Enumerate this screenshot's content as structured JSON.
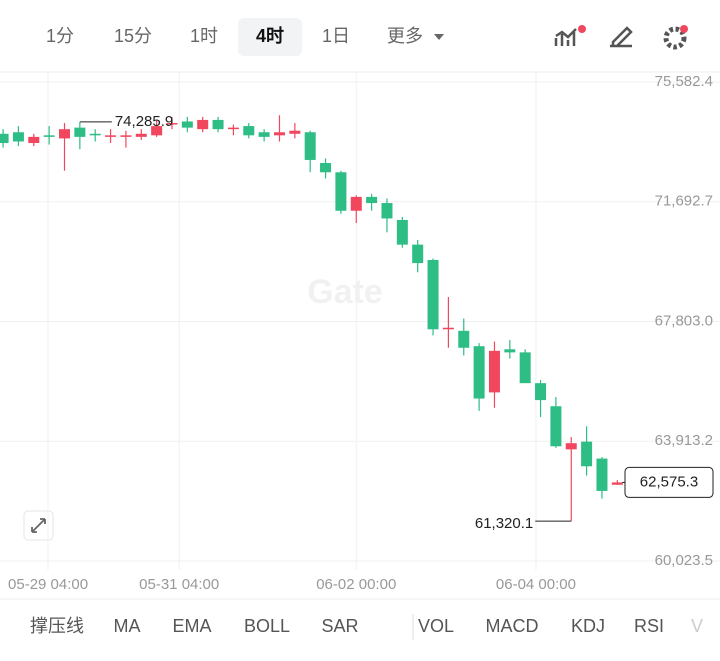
{
  "toolbar": {
    "intervals": [
      "1分",
      "15分",
      "1时",
      "4时",
      "1日"
    ],
    "selected": 3,
    "more": "更多"
  },
  "indicators": [
    "撑压线",
    "MA",
    "EMA",
    "BOLL",
    "SAR",
    "VOL",
    "MACD",
    "KDJ",
    "RSI",
    "V"
  ],
  "chart_data": {
    "type": "candlestick",
    "watermark": "Gate",
    "up_color": "#f0475e",
    "down_color": "#2dbd85",
    "open": [
      73900,
      73950,
      73600,
      73850,
      73750,
      74100,
      73900,
      73800,
      73800,
      73800,
      73850,
      74200,
      74300,
      74050,
      74350,
      74050,
      74150,
      73950,
      73850,
      73900,
      73950,
      72950,
      72650,
      71400,
      71850,
      71650,
      71100,
      70300,
      69800,
      67550,
      67500,
      67000,
      65500,
      66900,
      66800,
      65800,
      65050,
      63650,
      63900,
      63350,
      62500
    ],
    "high": [
      74050,
      74150,
      73900,
      74150,
      74250,
      74285.9,
      74050,
      74050,
      74000,
      74050,
      74350,
      74450,
      74450,
      74450,
      74450,
      74200,
      74250,
      74050,
      74500,
      74250,
      74000,
      73100,
      72700,
      71900,
      71950,
      71800,
      71200,
      70450,
      69850,
      68600,
      67900,
      67100,
      67150,
      67200,
      66900,
      65900,
      65350,
      64050,
      64400,
      63400,
      62650
    ],
    "low": [
      73450,
      73500,
      73500,
      73550,
      72700,
      73400,
      73650,
      73600,
      73450,
      73700,
      73800,
      74050,
      73950,
      73950,
      73950,
      73850,
      73750,
      73650,
      73650,
      73750,
      72650,
      72450,
      71300,
      71000,
      71400,
      70700,
      70200,
      69400,
      67350,
      66950,
      66700,
      64900,
      65000,
      66600,
      65800,
      64700,
      63700,
      61320.1,
      62800,
      62050,
      62500
    ],
    "close": [
      73600,
      73650,
      73800,
      73800,
      74050,
      73800,
      73850,
      73850,
      73850,
      73900,
      74150,
      74250,
      74100,
      74350,
      74050,
      74100,
      73850,
      73800,
      73950,
      74000,
      73050,
      72650,
      71400,
      71850,
      71650,
      71150,
      70300,
      69700,
      67550,
      67600,
      66950,
      65300,
      66850,
      66800,
      65800,
      65250,
      63750,
      63850,
      63100,
      62300,
      62575.3
    ],
    "ylim": [
      59731,
      75907
    ],
    "xlim": [
      -0.2,
      40.5
    ],
    "yticks": [
      {
        "value": 75582.4,
        "label": "75,582.4"
      },
      {
        "value": 71692.7,
        "label": "71,692.7"
      },
      {
        "value": 67803.0,
        "label": "67,803.0"
      },
      {
        "value": 63913.2,
        "label": "63,913.2"
      },
      {
        "value": 60023.5,
        "label": "60,023.5"
      }
    ],
    "xticks": [
      {
        "value": 2.93,
        "label": "05-29 04:00"
      },
      {
        "value": 11.47,
        "label": "05-31 04:00"
      },
      {
        "value": 23.0,
        "label": "06-02 00:00"
      },
      {
        "value": 34.7,
        "label": "06-04 00:00"
      }
    ],
    "annotations": [
      {
        "value": 74285.9,
        "label": "74,285.9"
      },
      {
        "value": 61320.1,
        "label": "61,320.1"
      },
      {
        "value": 62575.3,
        "label": "62,575.3"
      }
    ],
    "grid": true
  }
}
